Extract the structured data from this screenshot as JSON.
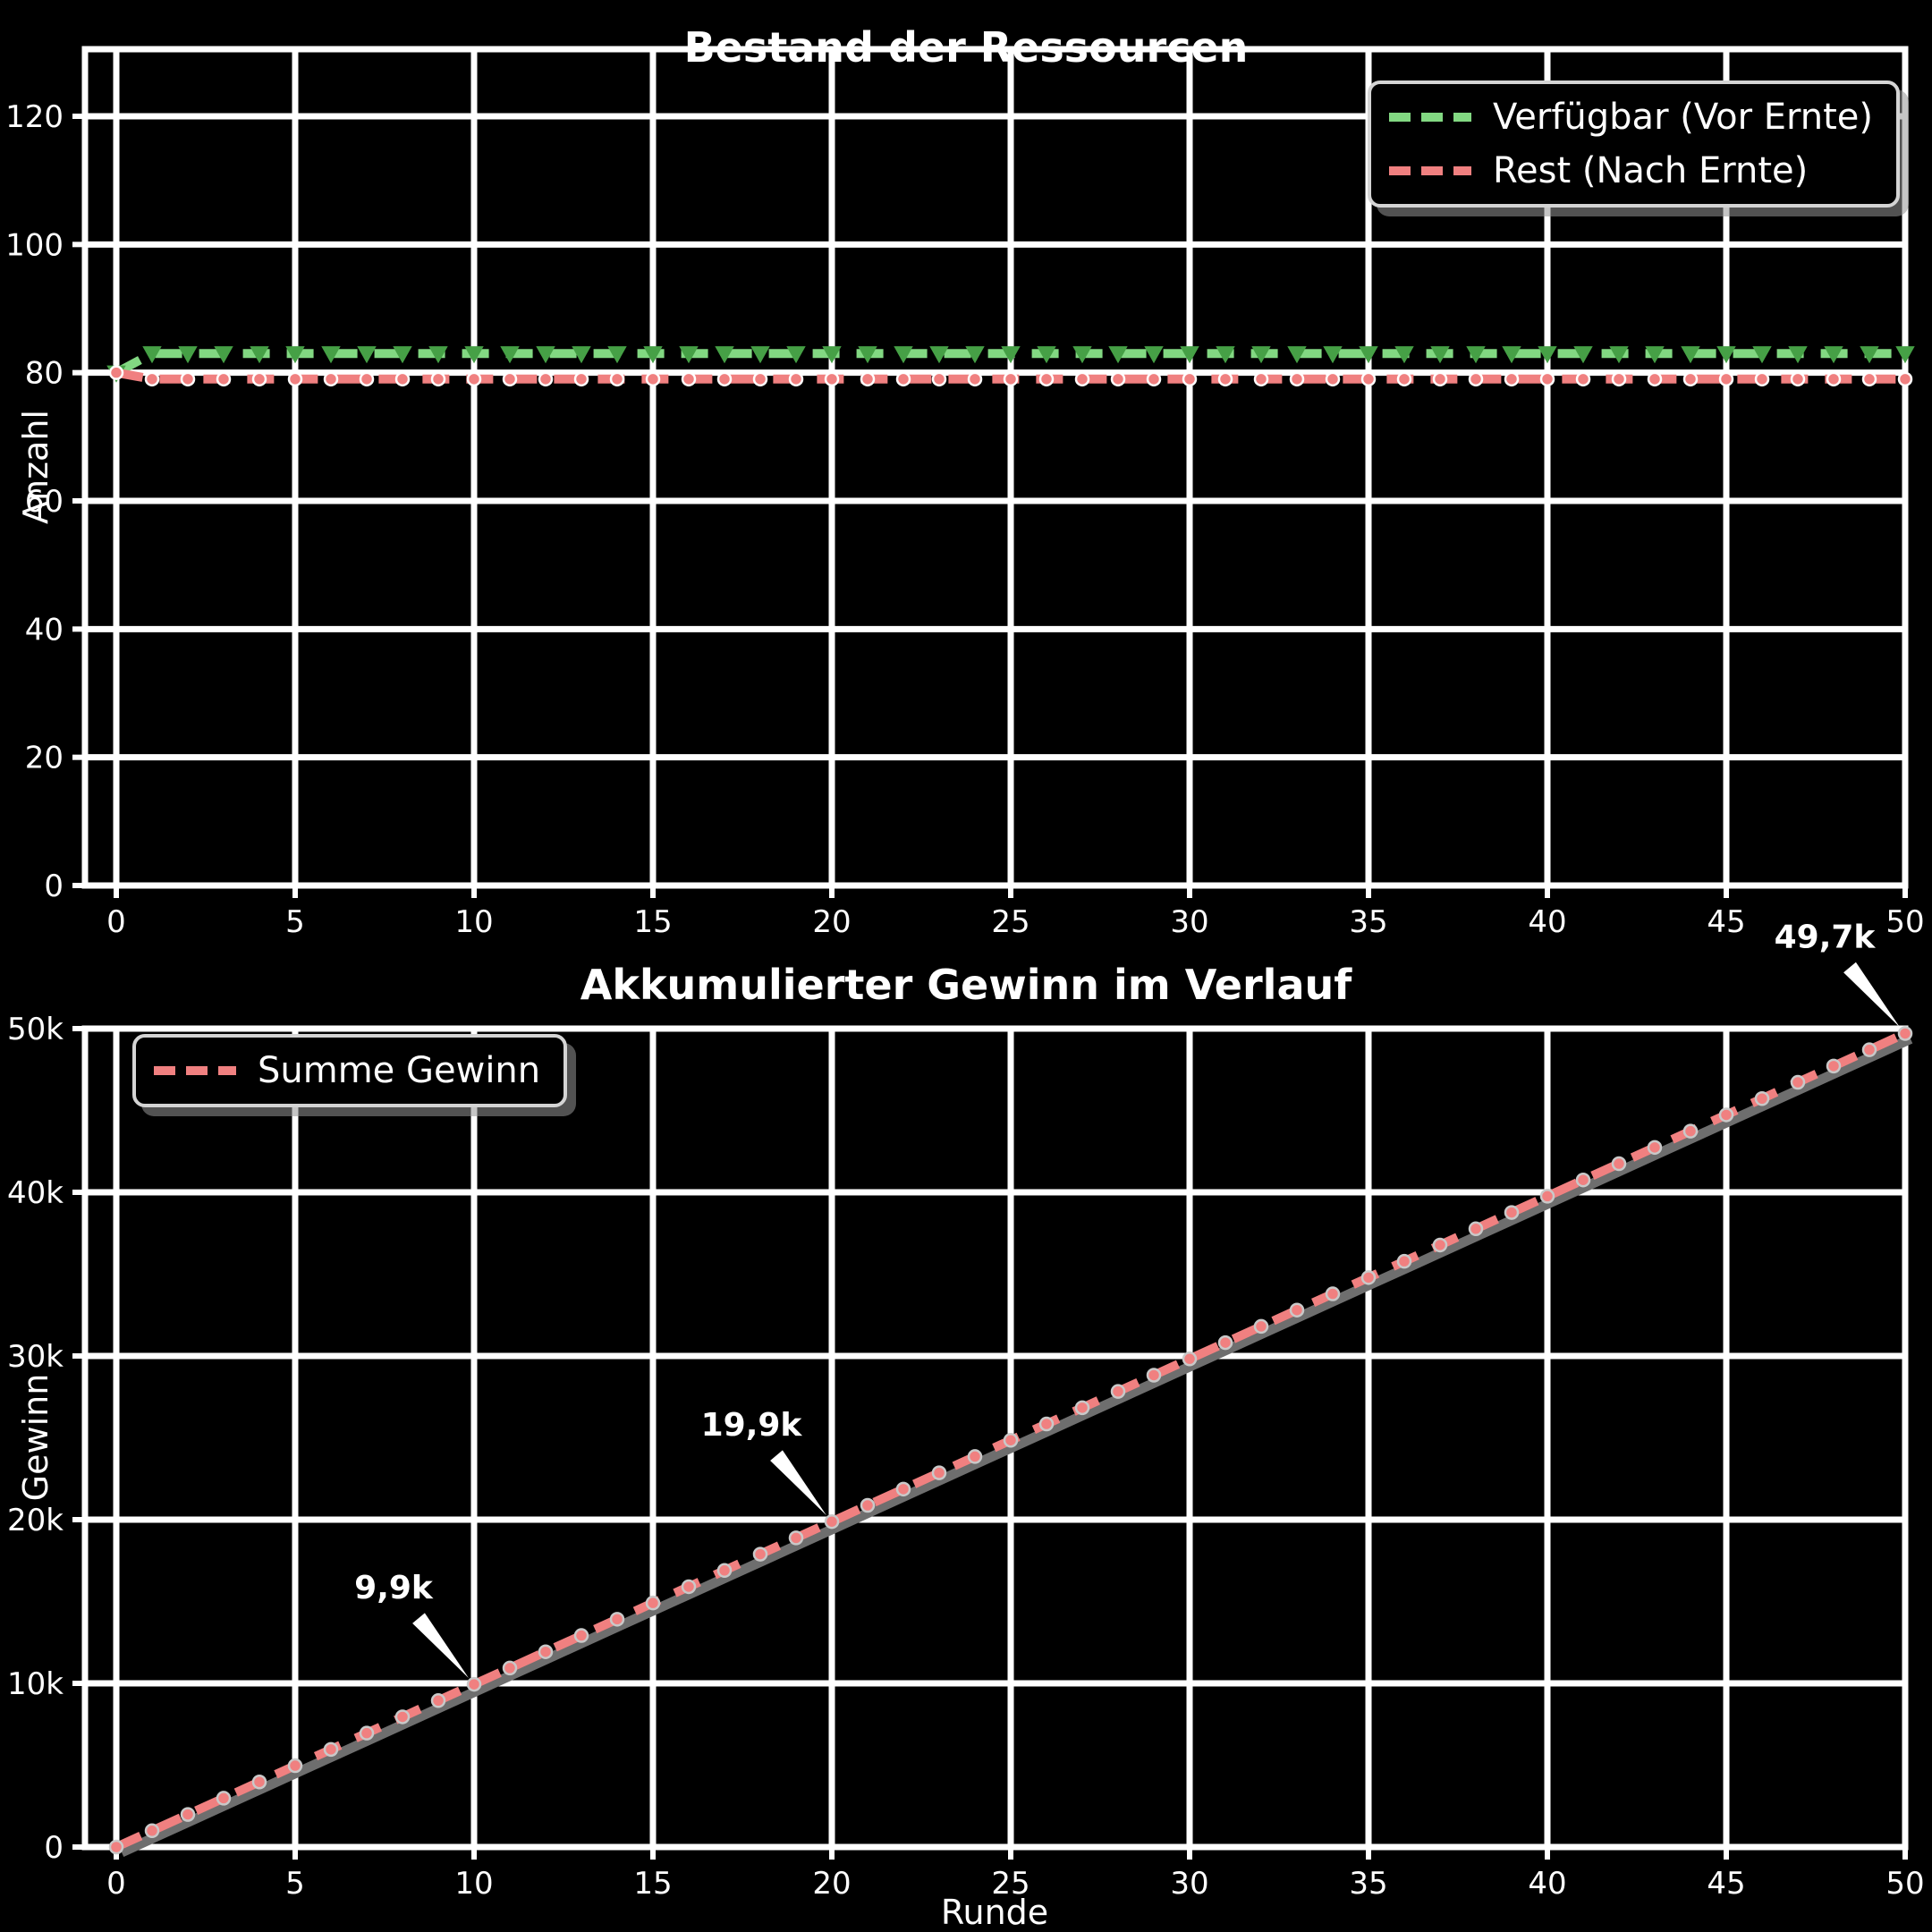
{
  "figure": {
    "background": "#000000",
    "text_color": "#ffffff",
    "grid_color": "#ffffff"
  },
  "chart_data": [
    {
      "id": "bestand",
      "type": "line",
      "title": "Bestand der Ressourcen",
      "xlabel": "",
      "ylabel": "Anzahl",
      "xlim": [
        0,
        50
      ],
      "ylim": [
        0,
        130
      ],
      "grid": true,
      "legend_position": "upper right",
      "x_ticks": [
        0,
        5,
        10,
        15,
        20,
        25,
        30,
        35,
        40,
        45,
        50
      ],
      "x_tick_labels": [
        "0",
        "5",
        "10",
        "15",
        "20",
        "25",
        "30",
        "35",
        "40",
        "45",
        "50"
      ],
      "y_ticks": [
        0,
        20,
        40,
        60,
        80,
        100,
        120
      ],
      "y_tick_labels": [
        "0",
        "20",
        "40",
        "60",
        "80",
        "100",
        "120"
      ],
      "series": [
        {
          "name": "Verfügbar (Vor Ernte)",
          "color": "#82d882",
          "marker": "triangle-down",
          "marker_color": "#46a046",
          "marker_edge": "#46a046",
          "line_style": "dashed",
          "shadow": false,
          "anchor_points": [
            [
              0,
              80
            ],
            [
              1,
              83
            ],
            [
              50,
              83
            ]
          ]
        },
        {
          "name": "Rest (Nach Ernte)",
          "color": "#f08080",
          "marker": "circle",
          "marker_color": "#f08080",
          "marker_edge": "#ffffff",
          "line_style": "dashed",
          "shadow": false,
          "anchor_points": [
            [
              0,
              80
            ],
            [
              1,
              79
            ],
            [
              50,
              79
            ]
          ]
        }
      ],
      "annotations": []
    },
    {
      "id": "gewinn",
      "type": "line",
      "title": "Akkumulierter Gewinn im Verlauf",
      "xlabel": "Runde",
      "ylabel": "Gewinn",
      "xlim": [
        0,
        50
      ],
      "ylim": [
        0,
        50000
      ],
      "grid": true,
      "legend_position": "upper left",
      "x_ticks": [
        0,
        5,
        10,
        15,
        20,
        25,
        30,
        35,
        40,
        45,
        50
      ],
      "x_tick_labels": [
        "0",
        "5",
        "10",
        "15",
        "20",
        "25",
        "30",
        "35",
        "40",
        "45",
        "50"
      ],
      "y_ticks": [
        0,
        10000,
        20000,
        30000,
        40000,
        50000
      ],
      "y_tick_labels": [
        "0",
        "10k",
        "20k",
        "30k",
        "40k",
        "50k"
      ],
      "series": [
        {
          "name": "Summe Gewinn",
          "color": "#f08080",
          "marker": "circle",
          "marker_color": "#f08080",
          "marker_edge": "#c9c9c9",
          "line_style": "dashed",
          "shadow": true,
          "anchor_points": [
            [
              0,
              0
            ],
            [
              50,
              49700
            ]
          ]
        }
      ],
      "annotations": [
        {
          "x": 10,
          "y": 9940,
          "label": "9,9k"
        },
        {
          "x": 20,
          "y": 19880,
          "label": "19,9k"
        },
        {
          "x": 50,
          "y": 49700,
          "label": "49,7k"
        }
      ]
    }
  ]
}
